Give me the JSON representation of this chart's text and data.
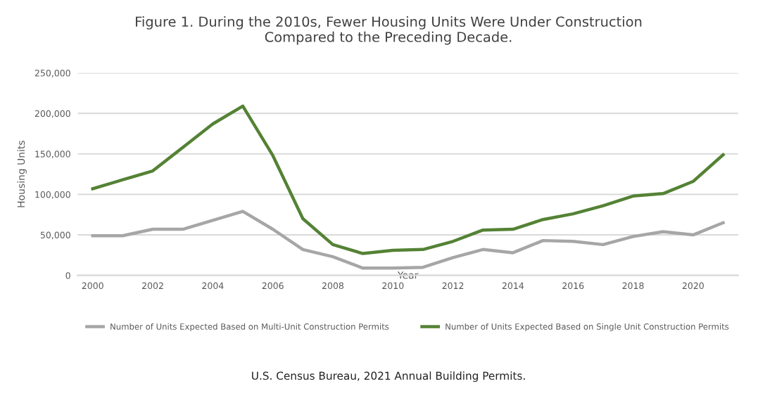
{
  "chart_data": {
    "type": "line",
    "title": "Figure 1. During the 2010s, Fewer Housing Units Were Under Construction\nCompared to the Preceding Decade.",
    "xlabel": "Year",
    "ylabel": "Housing Units",
    "x": [
      2000,
      2001,
      2002,
      2003,
      2004,
      2005,
      2006,
      2007,
      2008,
      2009,
      2010,
      2011,
      2012,
      2013,
      2014,
      2015,
      2016,
      2017,
      2018,
      2019,
      2020,
      2021
    ],
    "series": [
      {
        "name": "Number of Units Expected Based on Multi-Unit Construction Permits",
        "color": "#a6a6a6",
        "values": [
          49000,
          49000,
          57000,
          57000,
          68000,
          79000,
          57000,
          32000,
          23000,
          9000,
          9000,
          10000,
          22000,
          32000,
          28000,
          43000,
          42000,
          38000,
          48000,
          54000,
          50000,
          65000
        ]
      },
      {
        "name": "Number of Units Expected Based on Single Unit Construction Permits",
        "color": "#548235",
        "values": [
          107000,
          118000,
          129000,
          158000,
          187000,
          209000,
          148000,
          70000,
          38000,
          27000,
          31000,
          32000,
          42000,
          56000,
          57000,
          69000,
          76000,
          86000,
          98000,
          101000,
          116000,
          149000
        ]
      }
    ],
    "xlim": [
      1999.5,
      2021.5
    ],
    "xticks": [
      2000,
      2002,
      2004,
      2006,
      2008,
      2010,
      2012,
      2014,
      2016,
      2018,
      2020
    ],
    "ylim": [
      0,
      250000
    ],
    "yticks": [
      0,
      {
        "value": 50000,
        "label": "50,000"
      },
      {
        "value": 100000,
        "label": "100,000"
      },
      {
        "value": 150000,
        "label": "150,000"
      },
      {
        "value": 200000,
        "label": "200,000"
      },
      {
        "value": 250000,
        "label": "250,000"
      }
    ],
    "grid": "y",
    "legend": "bottom",
    "marker": "none",
    "line_style": "solid",
    "annotations": [
      "U.S. Census Bureau, 2021 Annual Building Permits."
    ]
  }
}
